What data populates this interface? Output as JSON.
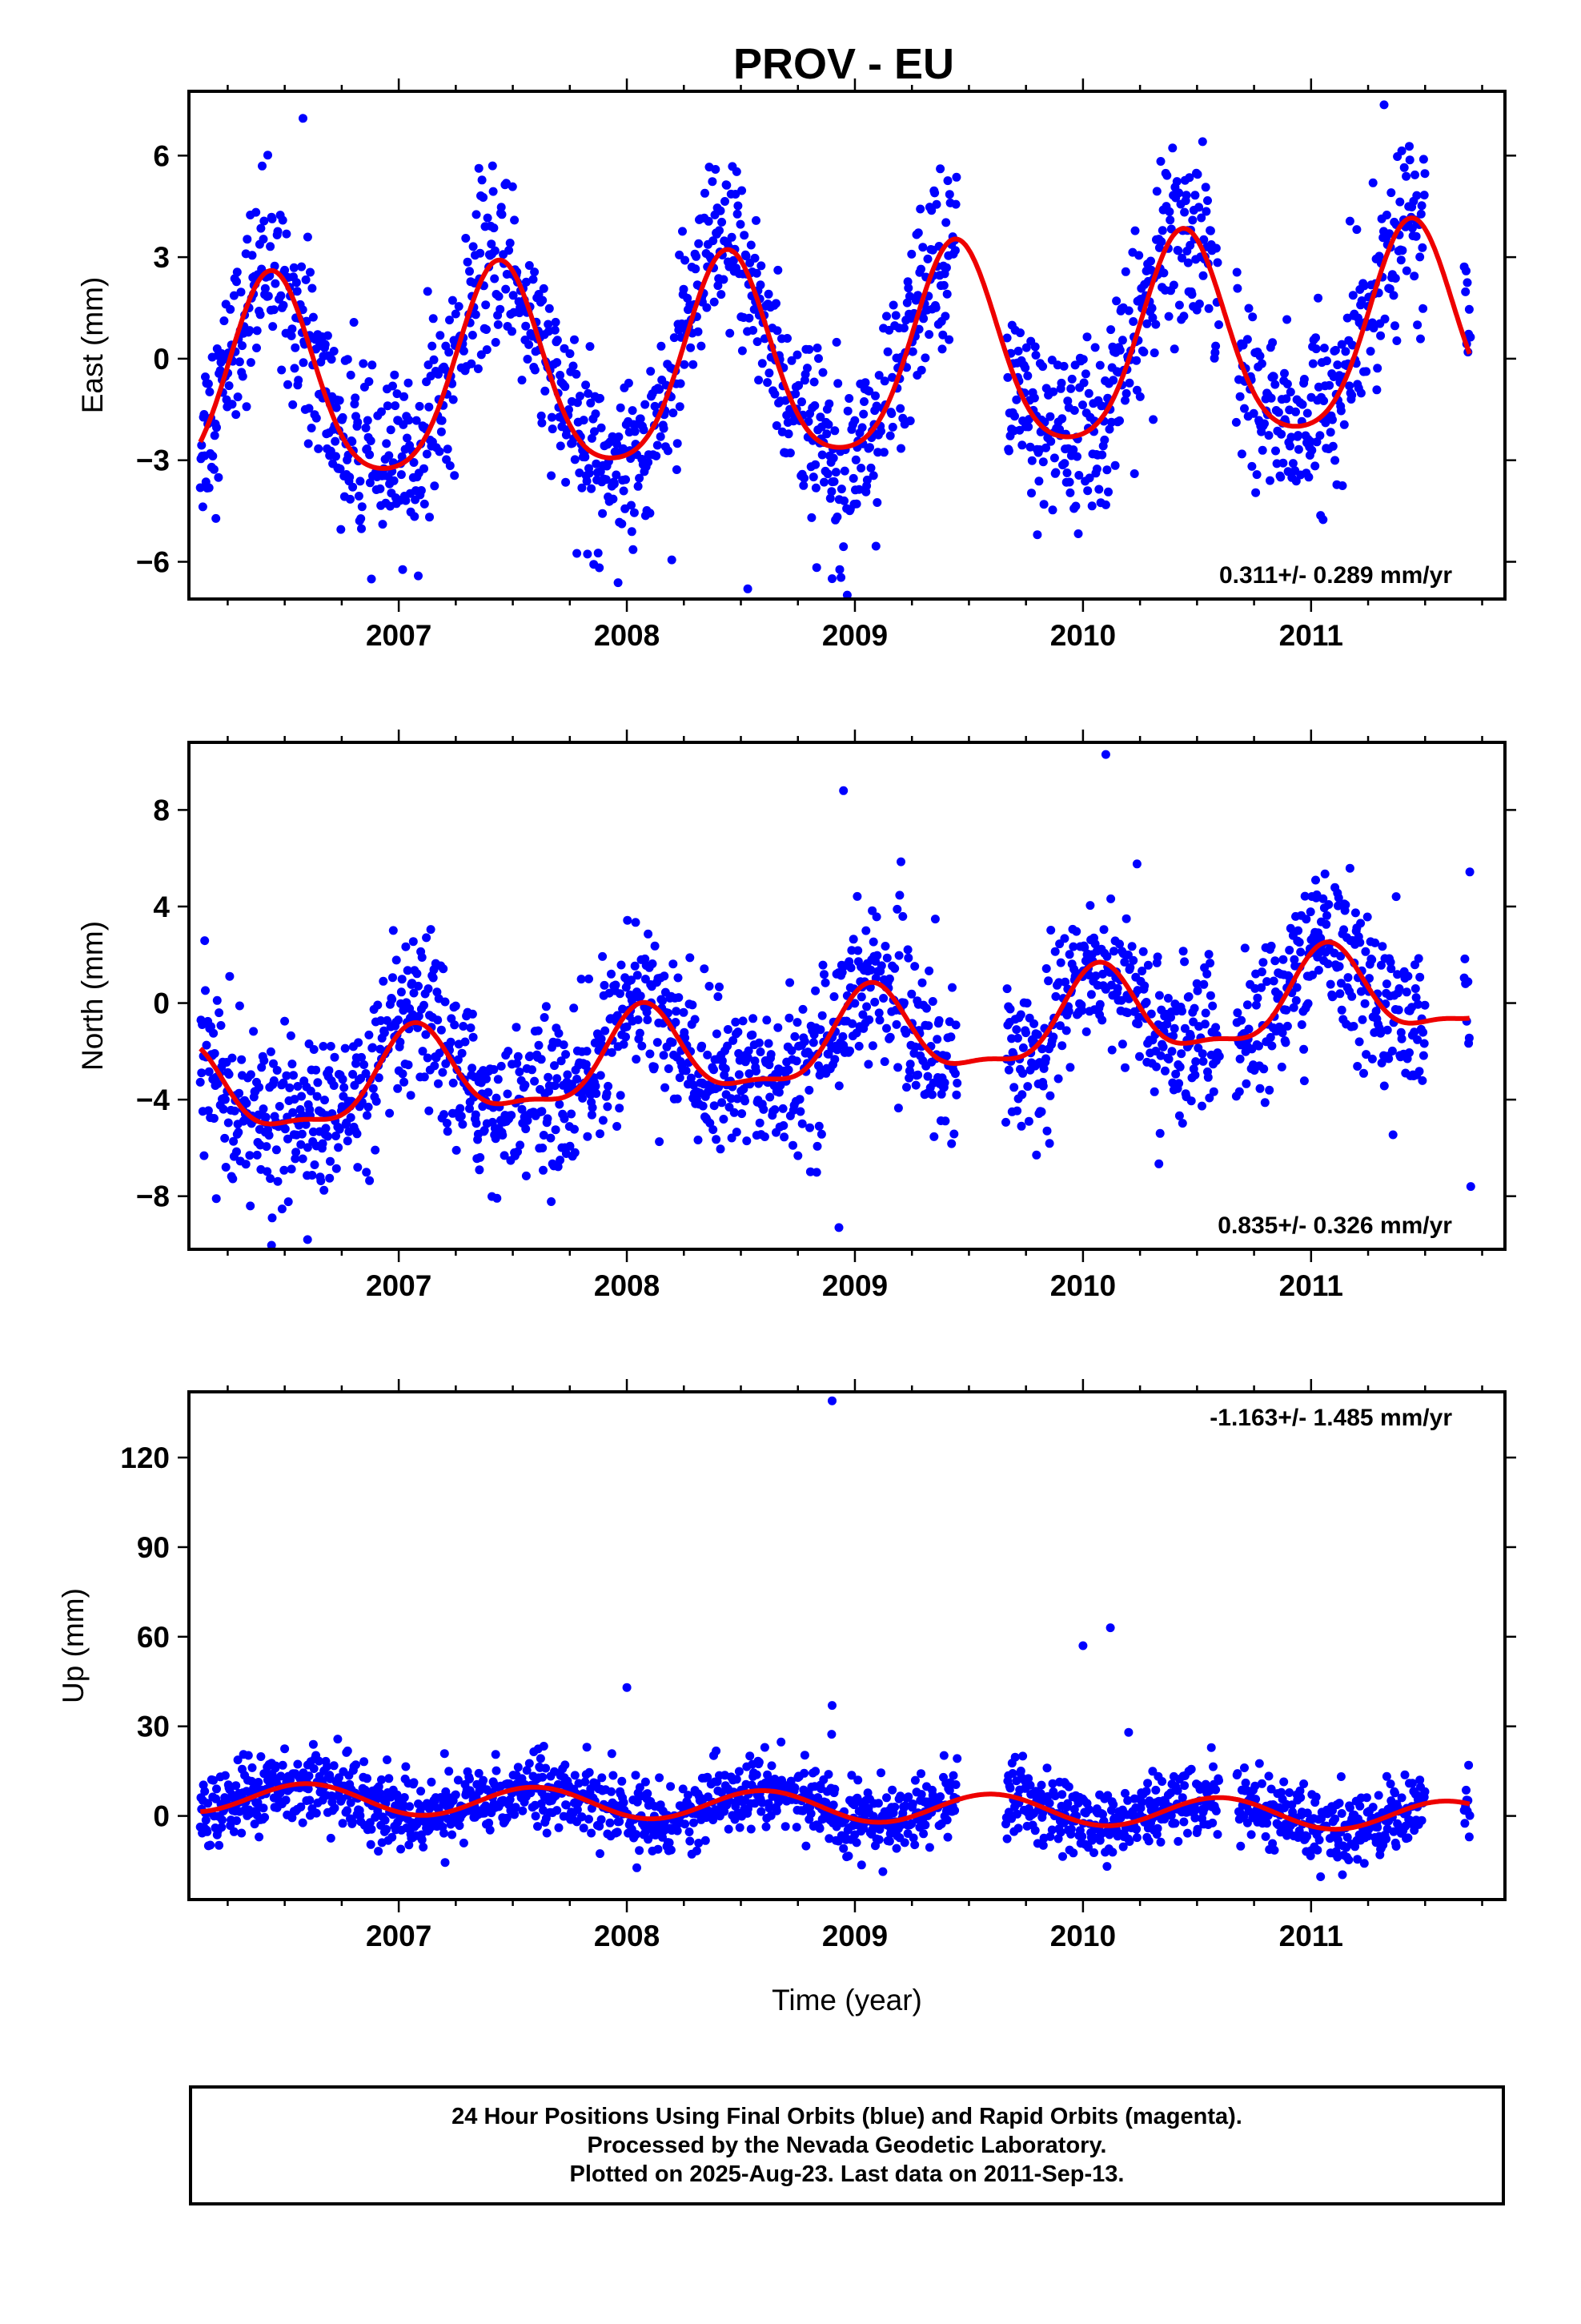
{
  "title": "PROV - EU",
  "footer": {
    "line1": "24 Hour Positions Using Final Orbits (blue) and Rapid Orbits (magenta).",
    "line2": "Processed by the Nevada Geodetic Laboratory.",
    "line3": "Plotted on 2025-Aug-23. Last data on 2011-Sep-13."
  },
  "colors": {
    "data": "#0000ff",
    "model": "#ee0000",
    "axis": "#000000"
  },
  "chart_data": [
    {
      "type": "scatter",
      "ylabel": "East (mm)",
      "xlabel": "",
      "xlim": [
        2006.08,
        2011.85
      ],
      "ylim": [
        -7.1,
        7.9
      ],
      "xticks": [
        2007,
        2008,
        2009,
        2010,
        2011
      ],
      "xtick_labels": [
        "2007",
        "2008",
        "2009",
        "2010",
        "2011"
      ],
      "yticks": [
        -6,
        -3,
        0,
        3,
        6
      ],
      "ytick_labels": [
        "−6",
        "−3",
        "0",
        "3",
        "6"
      ],
      "rate": "0.311+/- 0.289 mm/yr",
      "rate_position": "bottom-right",
      "model": {
        "offset": -0.1,
        "rate": 0.311,
        "annual_amp": 3.0,
        "annual_peak": 0.44,
        "semi_amp": 0.5,
        "semi_peak": 0.44
      },
      "outliers": [
        [
          2008.53,
          -6.8
        ],
        [
          2008.9,
          -6.5
        ],
        [
          2006.58,
          7.1
        ],
        [
          2011.32,
          7.5
        ],
        [
          2009.8,
          -5.2
        ]
      ],
      "gaps": [
        [
          2009.45,
          2009.66
        ],
        [
          2010.6,
          2010.67
        ],
        [
          2011.5,
          2011.67
        ]
      ],
      "scatter": 1.3
    },
    {
      "type": "scatter",
      "ylabel": "North (mm)",
      "xlabel": "",
      "xlim": [
        2006.08,
        2011.85
      ],
      "ylim": [
        -10.2,
        10.8
      ],
      "xticks": [
        2007,
        2008,
        2009,
        2010,
        2011
      ],
      "xtick_labels": [
        "2007",
        "2008",
        "2009",
        "2010",
        "2011"
      ],
      "yticks": [
        -8,
        -4,
        0,
        4,
        8
      ],
      "ytick_labels": [
        "−8",
        "−4",
        "0",
        "4",
        "8"
      ],
      "rate": "0.835+/- 0.326 mm/yr",
      "rate_position": "bottom-right",
      "model": {
        "offset": -1.6,
        "rate": 0.835,
        "annual_amp": 1.8,
        "annual_peak": 0.07,
        "semi_amp": 0.6,
        "semi_peak": 0.07
      },
      "outliers": [
        [
          2010.1,
          10.3
        ],
        [
          2008.95,
          8.8
        ],
        [
          2008.93,
          -9.3
        ],
        [
          2006.6,
          -9.8
        ],
        [
          2011.7,
          -7.6
        ],
        [
          2006.2,
          -8.1
        ]
      ],
      "gaps": [
        [
          2009.45,
          2009.66
        ],
        [
          2010.6,
          2010.67
        ],
        [
          2011.5,
          2011.67
        ]
      ],
      "scatter": 1.6
    },
    {
      "type": "scatter",
      "ylabel": "Up (mm)",
      "xlabel": "Time (year)",
      "xlim": [
        2006.08,
        2011.85
      ],
      "ylim": [
        -28,
        142
      ],
      "xticks": [
        2007,
        2008,
        2009,
        2010,
        2011
      ],
      "xtick_labels": [
        "2007",
        "2008",
        "2009",
        "2010",
        "2011"
      ],
      "yticks": [
        0,
        30,
        60,
        90,
        120
      ],
      "ytick_labels": [
        "0",
        "30",
        "60",
        "90",
        "120"
      ],
      "rate": "-1.163+/- 1.485 mm/yr",
      "rate_position": "top-right",
      "model": {
        "offset": 3.0,
        "rate": -1.163,
        "annual_amp": 5.0,
        "annual_peak": 0.6,
        "semi_amp": 0.0,
        "semi_peak": 0.0
      },
      "outliers": [
        [
          2008.9,
          139
        ],
        [
          2010.12,
          63
        ],
        [
          2010.0,
          57
        ],
        [
          2008.0,
          43
        ],
        [
          2008.9,
          37
        ],
        [
          2010.2,
          28
        ]
      ],
      "gaps": [
        [
          2009.45,
          2009.66
        ],
        [
          2010.6,
          2010.67
        ],
        [
          2011.5,
          2011.67
        ]
      ],
      "scatter": 6.0
    }
  ]
}
